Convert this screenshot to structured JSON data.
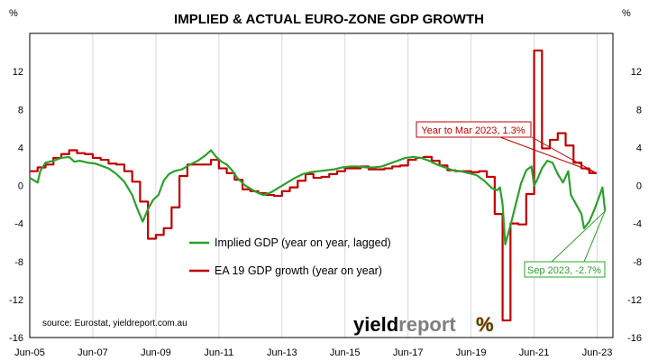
{
  "chart_data": {
    "type": "line",
    "title": "IMPLIED & ACTUAL EURO-ZONE GDP GROWTH",
    "y_unit_left": "%",
    "y_unit_right": "%",
    "ylim": [
      -16,
      16
    ],
    "yticks": [
      -16,
      -12,
      -8,
      -4,
      0,
      4,
      8,
      12
    ],
    "ytick_labels": [
      "-16",
      "-12",
      "-8",
      "-4",
      "0",
      "4",
      "8",
      "12"
    ],
    "x_tick_labels": [
      "Jun-05",
      "Jun-07",
      "Jun-09",
      "Jun-11",
      "Jun-13",
      "Jun-15",
      "Jun-17",
      "Jun-19",
      "Jun-21",
      "Jun-23"
    ],
    "x_tick_dates": [
      "2005-06",
      "2007-06",
      "2009-06",
      "2011-06",
      "2013-06",
      "2015-06",
      "2017-06",
      "2019-06",
      "2021-06",
      "2023-06"
    ],
    "xlim": [
      "2005-06",
      "2023-12"
    ],
    "grid": "vertical-lines",
    "legend_placement": "lower-center",
    "series": [
      {
        "name": "Implied GDP (year on year, lagged)",
        "color": "#2ca02c",
        "points": [
          [
            "2005-06",
            0.8
          ],
          [
            "2005-09",
            0.3
          ],
          [
            "2005-10",
            1.5
          ],
          [
            "2005-12",
            2.4
          ],
          [
            "2006-03",
            2.6
          ],
          [
            "2006-06",
            2.9
          ],
          [
            "2006-09",
            3.0
          ],
          [
            "2006-11",
            2.5
          ],
          [
            "2007-01",
            2.6
          ],
          [
            "2007-04",
            2.4
          ],
          [
            "2007-07",
            2.3
          ],
          [
            "2007-10",
            2.0
          ],
          [
            "2007-12",
            1.8
          ],
          [
            "2008-03",
            1.2
          ],
          [
            "2008-06",
            0.4
          ],
          [
            "2008-09",
            -1.0
          ],
          [
            "2008-11",
            -2.5
          ],
          [
            "2009-01",
            -3.8
          ],
          [
            "2009-03",
            -2.5
          ],
          [
            "2009-05",
            -1.5
          ],
          [
            "2009-07",
            -1.0
          ],
          [
            "2009-09",
            0.5
          ],
          [
            "2009-11",
            1.2
          ],
          [
            "2010-01",
            1.5
          ],
          [
            "2010-04",
            1.7
          ],
          [
            "2010-07",
            2.2
          ],
          [
            "2010-10",
            2.6
          ],
          [
            "2011-01",
            3.2
          ],
          [
            "2011-03",
            3.7
          ],
          [
            "2011-05",
            3.0
          ],
          [
            "2011-07",
            2.5
          ],
          [
            "2011-09",
            2.2
          ],
          [
            "2011-11",
            1.6
          ],
          [
            "2012-01",
            0.8
          ],
          [
            "2012-04",
            0.0
          ],
          [
            "2012-07",
            -0.5
          ],
          [
            "2012-09",
            -0.8
          ],
          [
            "2012-11",
            -1.0
          ],
          [
            "2013-02",
            -0.7
          ],
          [
            "2013-05",
            -0.2
          ],
          [
            "2013-08",
            0.3
          ],
          [
            "2013-11",
            0.8
          ],
          [
            "2014-02",
            1.2
          ],
          [
            "2014-05",
            1.4
          ],
          [
            "2014-08",
            1.5
          ],
          [
            "2014-11",
            1.6
          ],
          [
            "2015-02",
            1.7
          ],
          [
            "2015-05",
            1.9
          ],
          [
            "2015-08",
            2.0
          ],
          [
            "2015-11",
            2.0
          ],
          [
            "2016-02",
            1.9
          ],
          [
            "2016-05",
            1.9
          ],
          [
            "2016-08",
            2.0
          ],
          [
            "2016-11",
            2.3
          ],
          [
            "2017-02",
            2.6
          ],
          [
            "2017-05",
            2.9
          ],
          [
            "2017-08",
            3.0
          ],
          [
            "2017-11",
            2.9
          ],
          [
            "2018-02",
            2.6
          ],
          [
            "2018-05",
            2.2
          ],
          [
            "2018-08",
            1.9
          ],
          [
            "2018-11",
            1.6
          ],
          [
            "2019-02",
            1.5
          ],
          [
            "2019-05",
            1.3
          ],
          [
            "2019-08",
            1.1
          ],
          [
            "2019-11",
            0.5
          ],
          [
            "2020-02",
            -0.3
          ],
          [
            "2020-04",
            -0.5
          ],
          [
            "2020-05",
            -0.2
          ],
          [
            "2020-06",
            -2.0
          ],
          [
            "2020-07",
            -6.2
          ],
          [
            "2020-09",
            -4.2
          ],
          [
            "2020-11",
            -2.0
          ],
          [
            "2021-01",
            0.2
          ],
          [
            "2021-03",
            1.6
          ],
          [
            "2021-05",
            2.0
          ],
          [
            "2021-06",
            0.0
          ],
          [
            "2021-07",
            0.5
          ],
          [
            "2021-09",
            1.8
          ],
          [
            "2021-11",
            2.6
          ],
          [
            "2022-01",
            2.4
          ],
          [
            "2022-03",
            1.2
          ],
          [
            "2022-05",
            0.3
          ],
          [
            "2022-07",
            1.5
          ],
          [
            "2022-08",
            -1.0
          ],
          [
            "2022-10",
            -2.0
          ],
          [
            "2022-12",
            -3.0
          ],
          [
            "2023-01",
            -4.5
          ],
          [
            "2023-03",
            -3.8
          ],
          [
            "2023-05",
            -2.5
          ],
          [
            "2023-07",
            -1.0
          ],
          [
            "2023-08",
            -0.2
          ],
          [
            "2023-09",
            -2.7
          ]
        ]
      },
      {
        "name": "EA 19 GDP growth (year on year)",
        "color": "#c00000",
        "points": [
          [
            "2005-06",
            1.5
          ],
          [
            "2005-09",
            1.9
          ],
          [
            "2005-12",
            2.2
          ],
          [
            "2006-03",
            2.9
          ],
          [
            "2006-06",
            3.3
          ],
          [
            "2006-09",
            3.7
          ],
          [
            "2006-12",
            3.4
          ],
          [
            "2007-03",
            3.3
          ],
          [
            "2007-06",
            2.9
          ],
          [
            "2007-09",
            2.7
          ],
          [
            "2007-12",
            2.3
          ],
          [
            "2008-03",
            2.2
          ],
          [
            "2008-06",
            1.5
          ],
          [
            "2008-09",
            0.4
          ],
          [
            "2008-12",
            -1.7
          ],
          [
            "2009-03",
            -5.6
          ],
          [
            "2009-06",
            -5.2
          ],
          [
            "2009-09",
            -4.5
          ],
          [
            "2009-12",
            -2.3
          ],
          [
            "2010-03",
            1.0
          ],
          [
            "2010-06",
            2.2
          ],
          [
            "2010-09",
            2.2
          ],
          [
            "2010-12",
            2.2
          ],
          [
            "2011-03",
            2.7
          ],
          [
            "2011-06",
            1.8
          ],
          [
            "2011-09",
            1.3
          ],
          [
            "2011-12",
            0.6
          ],
          [
            "2012-03",
            -0.4
          ],
          [
            "2012-06",
            -0.6
          ],
          [
            "2012-09",
            -0.8
          ],
          [
            "2012-12",
            -1.0
          ],
          [
            "2013-03",
            -1.1
          ],
          [
            "2013-06",
            -0.6
          ],
          [
            "2013-09",
            -0.2
          ],
          [
            "2013-12",
            0.5
          ],
          [
            "2014-03",
            1.2
          ],
          [
            "2014-06",
            0.8
          ],
          [
            "2014-09",
            0.9
          ],
          [
            "2014-12",
            1.2
          ],
          [
            "2015-03",
            1.5
          ],
          [
            "2015-06",
            1.8
          ],
          [
            "2015-09",
            1.8
          ],
          [
            "2015-12",
            2.0
          ],
          [
            "2016-03",
            1.7
          ],
          [
            "2016-06",
            1.7
          ],
          [
            "2016-09",
            1.8
          ],
          [
            "2016-12",
            2.0
          ],
          [
            "2017-03",
            2.1
          ],
          [
            "2017-06",
            2.7
          ],
          [
            "2017-09",
            2.9
          ],
          [
            "2017-12",
            3.0
          ],
          [
            "2018-03",
            2.6
          ],
          [
            "2018-06",
            2.1
          ],
          [
            "2018-09",
            1.6
          ],
          [
            "2018-12",
            1.5
          ],
          [
            "2019-03",
            1.5
          ],
          [
            "2019-06",
            1.4
          ],
          [
            "2019-09",
            1.5
          ],
          [
            "2019-12",
            0.9
          ],
          [
            "2020-03",
            -3.0
          ],
          [
            "2020-06",
            -14.2
          ],
          [
            "2020-09",
            -4.0
          ],
          [
            "2020-12",
            -4.1
          ],
          [
            "2021-03",
            -0.9
          ],
          [
            "2021-06",
            14.2
          ],
          [
            "2021-09",
            3.9
          ],
          [
            "2021-12",
            4.8
          ],
          [
            "2022-03",
            5.5
          ],
          [
            "2022-06",
            4.2
          ],
          [
            "2022-09",
            2.4
          ],
          [
            "2022-12",
            1.8
          ],
          [
            "2023-03",
            1.3
          ]
        ]
      }
    ],
    "annotations": [
      {
        "text": "Year to Mar 2023, 1.3%",
        "color": "#c00000",
        "point": [
          "2023-03",
          1.3
        ]
      },
      {
        "text": "Sep 2023, -2.7%",
        "color": "#2ca02c",
        "point": [
          "2023-09",
          -2.7
        ]
      }
    ],
    "source": "source: Eurostat, yieldreport.com.au"
  },
  "logo": {
    "part1": "yield",
    "part2": "report",
    "part3": "%",
    "color1": "#000000",
    "color2": "#7f7f7f",
    "color_pct_red": "#c00000",
    "color_pct_green": "#2ca02c"
  }
}
